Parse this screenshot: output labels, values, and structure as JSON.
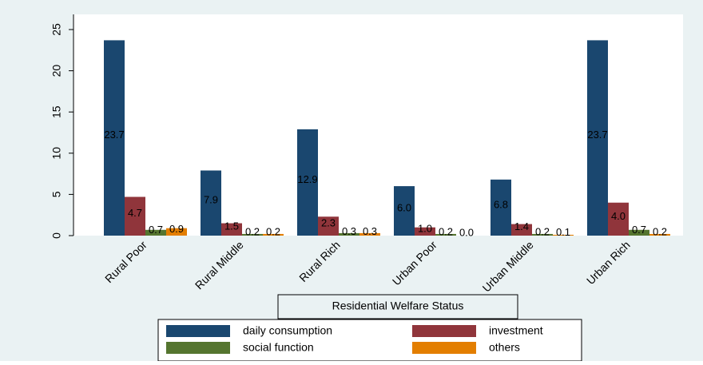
{
  "chart_data": {
    "type": "bar",
    "x_label": "Residential Welfare Status",
    "categories": [
      "Rural Poor",
      "Rural Middle",
      "Rural Rich",
      "Urban Poor",
      "Urban Middle",
      "Urban Rich"
    ],
    "series": [
      {
        "name": "daily consumption",
        "color": "#1a476f",
        "values": [
          23.7,
          7.9,
          12.9,
          6.0,
          6.8,
          23.7
        ],
        "value_labels": [
          "23.7",
          "7.9",
          "12.9",
          "6.0",
          "6.8",
          "23.7"
        ]
      },
      {
        "name": "investment",
        "color": "#90353b",
        "values": [
          4.7,
          1.5,
          2.3,
          1.0,
          1.4,
          4.0
        ],
        "value_labels": [
          "4.7",
          "1.5",
          "2.3",
          "1.0",
          "1.4",
          "4.0"
        ]
      },
      {
        "name": "social function",
        "color": "#55752f",
        "values": [
          0.7,
          0.2,
          0.3,
          0.2,
          0.2,
          0.7
        ],
        "value_labels": [
          "0.7",
          "0.2",
          "0.3",
          "0.2",
          "0.2",
          "0.7"
        ]
      },
      {
        "name": "others",
        "color": "#e37e00",
        "values": [
          0.9,
          0.2,
          0.3,
          0.0,
          0.1,
          0.2
        ],
        "value_labels": [
          "0.9",
          "0.2",
          "0.3",
          "0.0",
          "0.1",
          "0.2"
        ]
      }
    ],
    "ylim": [
      0,
      25
    ],
    "yticks": [
      0,
      5,
      10,
      15,
      20,
      25
    ]
  }
}
